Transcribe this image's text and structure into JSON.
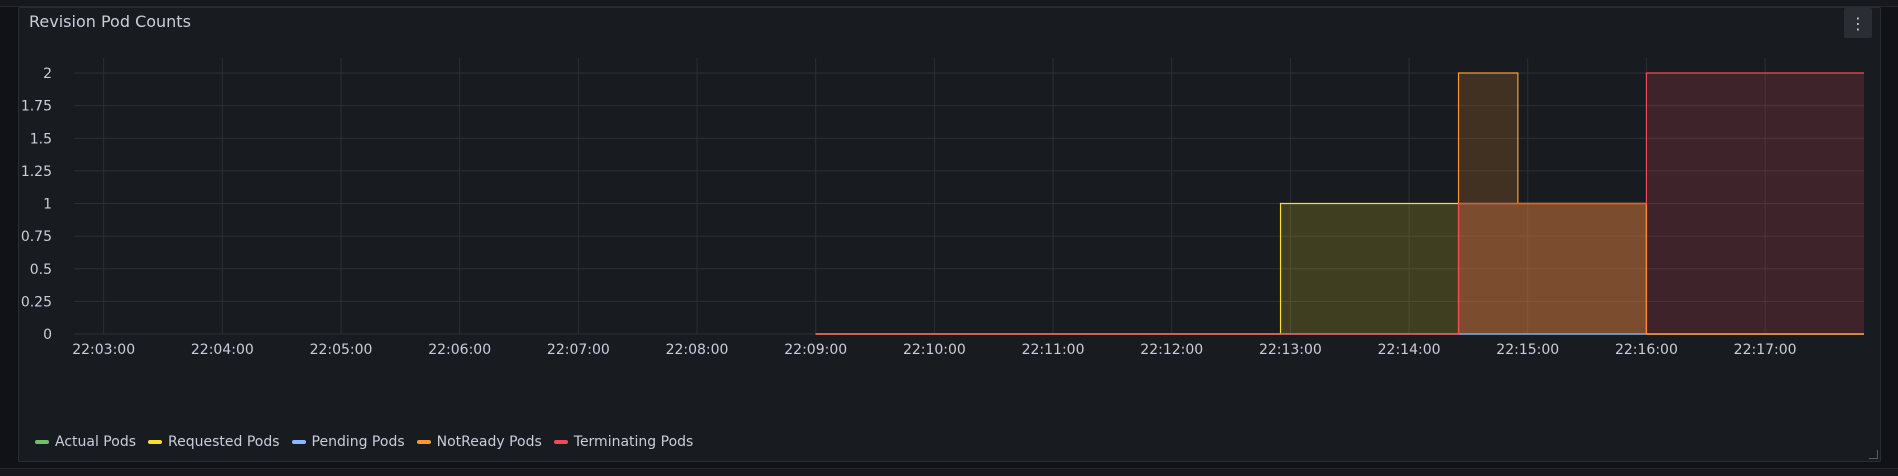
{
  "panel": {
    "title": "Revision Pod Counts",
    "menu_icon": "more-vertical-icon"
  },
  "chart_data": {
    "type": "area",
    "title": "Revision Pod Counts",
    "x_unit": "time (HH:MM:SS)",
    "x_ticks": [
      "22:03:00",
      "22:04:00",
      "22:05:00",
      "22:06:00",
      "22:07:00",
      "22:08:00",
      "22:09:00",
      "22:10:00",
      "22:11:00",
      "22:12:00",
      "22:13:00",
      "22:14:00",
      "22:15:00",
      "22:16:00",
      "22:17:00"
    ],
    "y_ticks": [
      "0",
      "0.25",
      "0.5",
      "0.75",
      "1",
      "1.25",
      "1.5",
      "1.75",
      "2"
    ],
    "xlim": [
      "22:02:45",
      "22:17:50"
    ],
    "ylim": [
      0,
      2
    ],
    "grid": true,
    "legend_position": "bottom-left",
    "series": [
      {
        "name": "Actual Pods",
        "color": "#73bf69",
        "steps": [
          [
            "22:09:00",
            0
          ],
          [
            "22:17:50",
            0
          ]
        ]
      },
      {
        "name": "Requested Pods",
        "color": "#fade2a",
        "steps": [
          [
            "22:09:00",
            0
          ],
          [
            "22:12:55",
            1
          ],
          [
            "22:16:00",
            0
          ],
          [
            "22:17:50",
            0
          ]
        ]
      },
      {
        "name": "Pending Pods",
        "color": "#8ab8ff",
        "steps": [
          [
            "22:09:00",
            0
          ],
          [
            "22:17:50",
            0
          ]
        ]
      },
      {
        "name": "NotReady Pods",
        "color": "#ff9830",
        "steps": [
          [
            "22:09:00",
            0
          ],
          [
            "22:14:25",
            2
          ],
          [
            "22:14:55",
            1
          ],
          [
            "22:16:00",
            0
          ],
          [
            "22:17:50",
            0
          ]
        ]
      },
      {
        "name": "Terminating Pods",
        "color": "#f2495c",
        "steps": [
          [
            "22:09:00",
            0
          ],
          [
            "22:14:25",
            1
          ],
          [
            "22:16:00",
            2
          ],
          [
            "22:17:50",
            2
          ]
        ]
      }
    ]
  }
}
